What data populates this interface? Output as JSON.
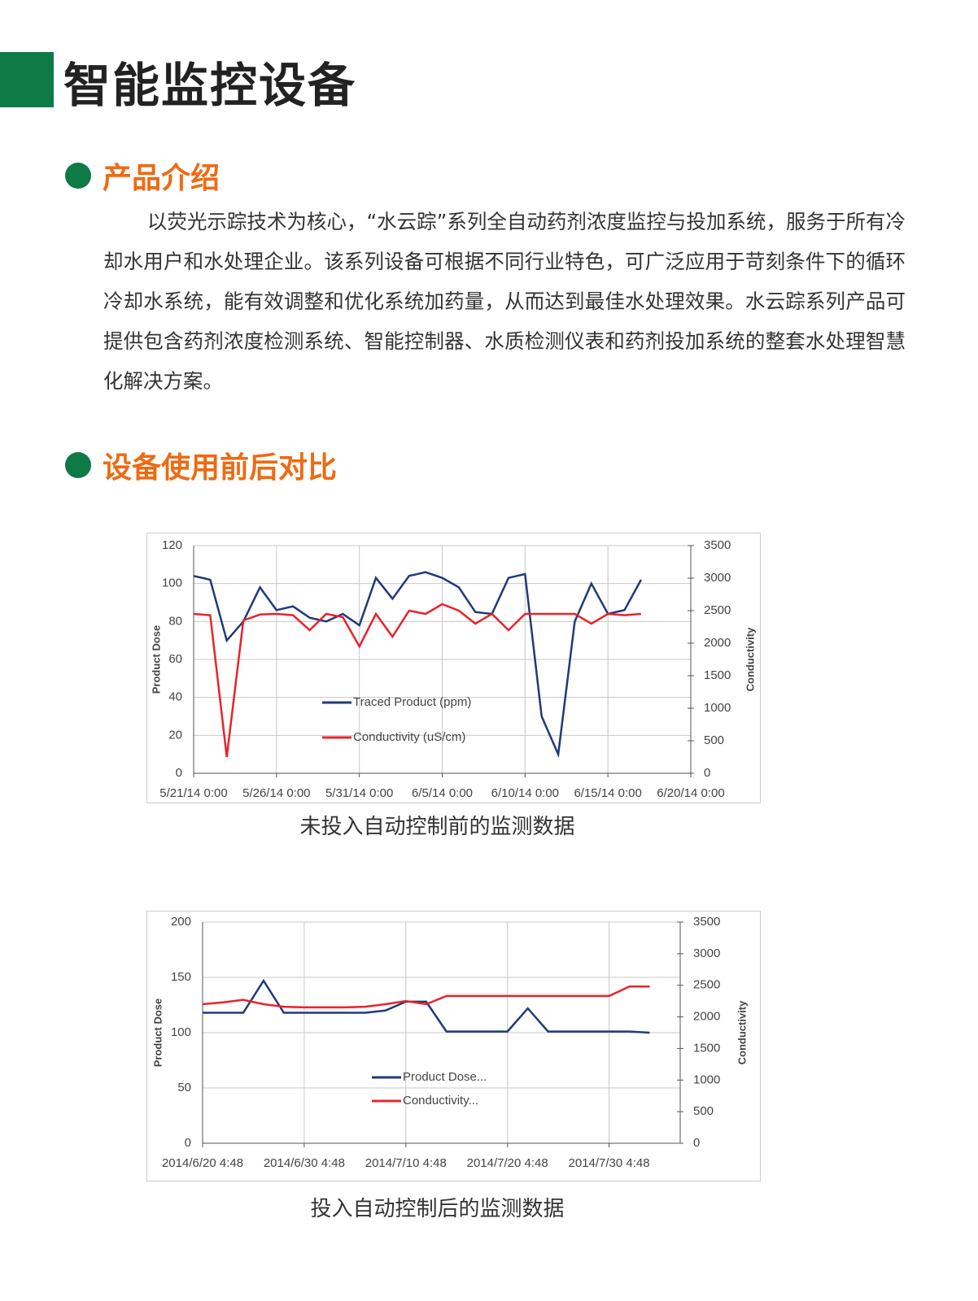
{
  "header": {
    "title": "智能监控设备"
  },
  "section1": {
    "title": "产品介绍",
    "paragraph": "以荧光示踪技术为核心，“水云踪”系列全自动药剂浓度监控与投加系统，服务于所有冷却水用户和水处理企业。该系列设备可根据不同行业特色，可广泛应用于苛刻条件下的循环冷却水系统，能有效调整和优化系统加药量，从而达到最佳水处理效果。水云踪系列产品可提供包含药剂浓度检测系统、智能控制器、水质检测仪表和药剂投加系统的整套水处理智慧化解决方案。"
  },
  "section2": {
    "title": "设备使用前后对比"
  },
  "chart_data": [
    {
      "type": "line",
      "caption": "未投入自动控制前的监测数据",
      "y_label": "Product Dose",
      "y2_label": "Conductivity",
      "grid": true,
      "legend": "center",
      "x": [
        "5/21/14 0:00",
        "5/22/14 0:00",
        "5/23/14 0:00",
        "5/24/14 0:00",
        "5/25/14 0:00",
        "5/26/14 0:00",
        "5/27/14 0:00",
        "5/28/14 0:00",
        "5/29/14 0:00",
        "5/30/14 0:00",
        "5/31/14 0:00",
        "6/1/14 0:00",
        "6/2/14 0:00",
        "6/3/14 0:00",
        "6/4/14 0:00",
        "6/5/14 0:00",
        "6/6/14 0:00",
        "6/7/14 0:00",
        "6/8/14 0:00",
        "6/9/14 0:00",
        "6/10/14 0:00",
        "6/11/14 0:00",
        "6/12/14 0:00",
        "6/13/14 0:00",
        "6/14/14 0:00",
        "6/15/14 0:00",
        "6/16/14 0:00",
        "6/17/14 0:00"
      ],
      "xlim": [
        "5/21/14 0:00",
        "6/20/14 0:00"
      ],
      "xticks": [
        "5/21/14 0:00",
        "5/26/14 0:00",
        "5/31/14 0:00",
        "6/5/14 0:00",
        "6/10/14 0:00",
        "6/15/14 0:00",
        "6/20/14 0:00"
      ],
      "ylim": [
        0,
        120
      ],
      "yticks": [
        0,
        20,
        40,
        60,
        80,
        100,
        120
      ],
      "y2lim": [
        0,
        3500
      ],
      "y2ticks": [
        0,
        500,
        1000,
        1500,
        2000,
        2500,
        3000,
        3500
      ],
      "series": [
        {
          "name": "Traced Product (ppm)",
          "color": "#1f3a7a",
          "values": [
            104,
            102,
            70,
            80,
            98,
            86,
            88,
            82,
            80,
            84,
            78,
            103,
            92,
            104,
            106,
            103,
            98,
            85,
            84,
            103,
            105,
            30,
            10,
            80,
            100,
            84,
            86,
            102
          ]
        },
        {
          "name": "Conductivity (uS/cm)",
          "color": "#e8232a",
          "axis": "y2",
          "values": [
            2450,
            2430,
            250,
            2350,
            2440,
            2450,
            2430,
            2200,
            2450,
            2400,
            1950,
            2450,
            2100,
            2500,
            2450,
            2600,
            2500,
            2300,
            2450,
            2200,
            2450,
            2450,
            2450,
            2450,
            2300,
            2450,
            2430,
            2450
          ]
        }
      ]
    },
    {
      "type": "line",
      "caption": "投入自动控制后的监测数据",
      "y_label": "Product Dose",
      "y2_label": "Conductivity",
      "grid": true,
      "legend": "center",
      "x": [
        "2014/6/20 4:48",
        "2014/6/22 4:48",
        "2014/6/24 4:48",
        "2014/6/26 4:48",
        "2014/6/28 4:48",
        "2014/6/30 4:48",
        "2014/7/2 4:48",
        "2014/7/4 4:48",
        "2014/7/6 4:48",
        "2014/7/8 4:48",
        "2014/7/10 4:48",
        "2014/7/12 4:48",
        "2014/7/14 4:48",
        "2014/7/16 4:48",
        "2014/7/18 4:48",
        "2014/7/20 4:48",
        "2014/7/22 4:48",
        "2014/7/24 4:48",
        "2014/7/26 4:48",
        "2014/7/28 4:48",
        "2014/7/30 4:48",
        "2014/8/1 4:48",
        "2014/8/3 4:48"
      ],
      "xlim": [
        "2014/6/20 4:48",
        "2014/8/6 4:48"
      ],
      "xticks": [
        "2014/6/20 4:48",
        "2014/6/30 4:48",
        "2014/7/10 4:48",
        "2014/7/20 4:48",
        "2014/7/30 4:48"
      ],
      "ylim": [
        0,
        200
      ],
      "yticks": [
        0,
        50,
        100,
        150,
        200
      ],
      "y2lim": [
        0,
        3500
      ],
      "y2ticks": [
        0,
        500,
        1000,
        1500,
        2000,
        2500,
        3000,
        3500
      ],
      "series": [
        {
          "name": "Product Dose...",
          "color": "#1f3a7a",
          "values": [
            118,
            118,
            118,
            147,
            118,
            118,
            118,
            118,
            118,
            120,
            128,
            128,
            101,
            101,
            101,
            101,
            122,
            101,
            101,
            101,
            101,
            101,
            100
          ]
        },
        {
          "name": "Conductivity...",
          "color": "#e8232a",
          "axis": "y2",
          "values": [
            2200,
            2230,
            2270,
            2200,
            2160,
            2150,
            2150,
            2150,
            2160,
            2200,
            2250,
            2200,
            2330,
            2330,
            2330,
            2330,
            2330,
            2330,
            2330,
            2330,
            2330,
            2480,
            2480
          ]
        }
      ]
    }
  ]
}
